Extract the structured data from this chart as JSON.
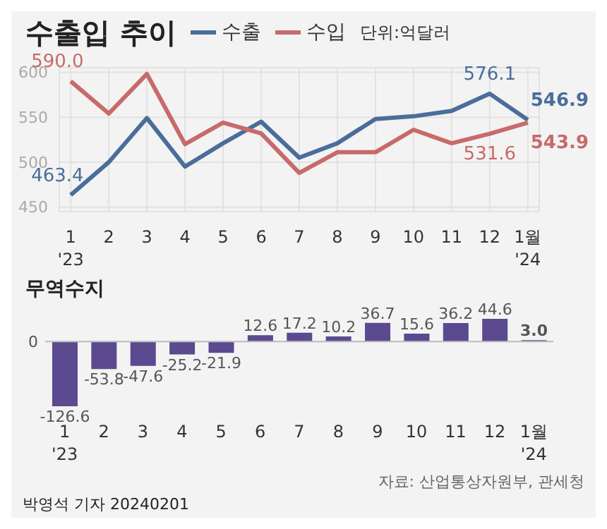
{
  "chart_data": [
    {
      "type": "line",
      "title": "수출입 추이",
      "annotations": [
        "단위:억달러"
      ],
      "categories": [
        "1\n'23",
        "2",
        "3",
        "4",
        "5",
        "6",
        "7",
        "8",
        "9",
        "10",
        "11",
        "12",
        "1월\n'24"
      ],
      "series": [
        {
          "name": "수출",
          "color": "#4a6d9a",
          "values": [
            463.4,
            500,
            549,
            495,
            521,
            545,
            505,
            521,
            548,
            551,
            557,
            576.1,
            546.9
          ],
          "value_labels": [
            "463.4",
            null,
            null,
            null,
            null,
            null,
            null,
            null,
            null,
            null,
            null,
            "576.1",
            "546.9"
          ]
        },
        {
          "name": "수입",
          "color": "#c86a6a",
          "values": [
            590.0,
            554,
            598,
            520,
            544,
            532,
            488,
            511,
            511,
            536,
            521,
            531.6,
            543.9
          ],
          "value_labels": [
            "590.0",
            null,
            null,
            null,
            null,
            null,
            null,
            null,
            null,
            null,
            null,
            "531.6",
            "543.9"
          ]
        }
      ],
      "ylim": [
        445,
        605
      ],
      "yticks": [
        450,
        500,
        550,
        600
      ],
      "grid": true,
      "legend": "top",
      "marker": "none"
    },
    {
      "type": "bar",
      "title": "무역수지",
      "categories": [
        "1\n'23",
        "2",
        "3",
        "4",
        "5",
        "6",
        "7",
        "8",
        "9",
        "10",
        "11",
        "12",
        "1월\n'24"
      ],
      "values": [
        -126.6,
        -53.8,
        -47.6,
        -25.2,
        -21.9,
        12.6,
        17.2,
        10.2,
        36.7,
        15.6,
        36.2,
        44.6,
        3.0
      ],
      "color": "#5b4a8f",
      "value_labels": [
        "-126.6",
        "-53.8",
        "-47.6",
        "-25.2",
        "-21.9",
        "12.6",
        "17.2",
        "10.2",
        "36.7",
        "15.6",
        "36.2",
        "44.6",
        "3.0"
      ],
      "annotations": [
        "0",
        "자료: 산업통상자원부, 관세청",
        "박영석 기자 20240201"
      ]
    }
  ]
}
